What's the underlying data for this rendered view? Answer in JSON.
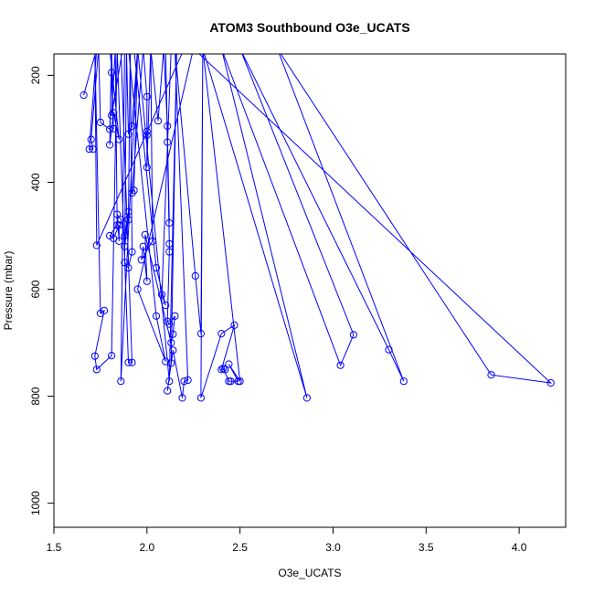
{
  "chart_data": {
    "type": "line",
    "title": "ATOM3 Southbound O3e_UCATS",
    "xlabel": "O3e_UCATS",
    "ylabel": "Pressure (mbar)",
    "xlim": [
      1.5,
      4.25
    ],
    "ylim": [
      1045,
      160
    ],
    "y_reversed": true,
    "x_ticks": [
      "1.5",
      "2.0",
      "2.5",
      "3.0",
      "3.5",
      "4.0"
    ],
    "y_ticks": [
      "200",
      "400",
      "600",
      "800",
      "1000"
    ],
    "grid": false,
    "colors": {
      "series": "#0000ff",
      "axes": "#000000"
    },
    "series": [
      {
        "style": "line+open-circle",
        "points": [
          [
            1.66,
            237
          ],
          [
            1.73,
            150
          ],
          [
            1.69,
            338
          ],
          [
            1.71,
            338
          ],
          [
            1.7,
            320
          ],
          [
            1.74,
            150
          ],
          [
            1.75,
            288
          ],
          [
            1.8,
            301
          ],
          [
            1.81,
            195
          ],
          [
            1.82,
            300
          ],
          [
            1.81,
            150
          ],
          [
            1.8,
            330
          ],
          [
            1.82,
            270
          ],
          [
            1.85,
            320
          ],
          [
            1.8,
            150
          ],
          [
            1.87,
            150
          ],
          [
            1.81,
            275
          ],
          [
            1.83,
            150
          ],
          [
            1.84,
            480
          ],
          [
            1.8,
            500
          ],
          [
            1.82,
            505
          ],
          [
            1.85,
            480
          ],
          [
            1.85,
            510
          ],
          [
            1.84,
            460
          ],
          [
            1.86,
            470
          ],
          [
            1.88,
            500
          ],
          [
            1.9,
            455
          ],
          [
            1.88,
            520
          ],
          [
            1.9,
            470
          ],
          [
            1.91,
            150
          ],
          [
            1.92,
            530
          ],
          [
            1.9,
            560
          ],
          [
            1.88,
            550
          ],
          [
            1.89,
            150
          ],
          [
            1.9,
            310
          ],
          [
            1.92,
            295
          ],
          [
            1.95,
            150
          ],
          [
            1.93,
            415
          ],
          [
            1.92,
            420
          ],
          [
            1.98,
            150
          ],
          [
            2.0,
            240
          ],
          [
            2.0,
            305
          ],
          [
            2.0,
            312
          ],
          [
            2.0,
            372
          ],
          [
            2.02,
            150
          ],
          [
            2.06,
            285
          ],
          [
            2.09,
            150
          ],
          [
            2.11,
            295
          ],
          [
            2.11,
            325
          ],
          [
            2.12,
            476
          ],
          [
            2.1,
            150
          ],
          [
            2.12,
            515
          ],
          [
            2.12,
            530
          ],
          [
            2.11,
            660
          ],
          [
            2.12,
            665
          ],
          [
            2.15,
            650
          ],
          [
            2.14,
            684
          ],
          [
            2.13,
            700
          ],
          [
            1.99,
            498
          ],
          [
            2.0,
            585
          ],
          [
            1.98,
            520
          ],
          [
            1.97,
            545
          ],
          [
            2.03,
            510
          ],
          [
            2.02,
            150
          ],
          [
            2.06,
            150
          ],
          [
            2.14,
            150
          ],
          [
            1.93,
            150
          ],
          [
            2.05,
            560
          ],
          [
            2.1,
            630
          ],
          [
            2.08,
            610
          ],
          [
            2.13,
            150
          ],
          [
            2.2,
            150
          ],
          [
            1.73,
            518
          ],
          [
            1.72,
            150
          ],
          [
            1.75,
            645
          ],
          [
            1.77,
            640
          ],
          [
            1.72,
            725
          ],
          [
            1.73,
            750
          ],
          [
            1.81,
            724
          ],
          [
            1.84,
            150
          ],
          [
            1.9,
            737
          ],
          [
            1.92,
            737
          ],
          [
            1.86,
            150
          ],
          [
            1.88,
            150
          ],
          [
            1.86,
            772
          ],
          [
            1.95,
            150
          ],
          [
            2.12,
            772
          ],
          [
            2.16,
            150
          ],
          [
            2.13,
            738
          ],
          [
            2.11,
            790
          ],
          [
            2.14,
            714
          ],
          [
            2.19,
            803
          ],
          [
            2.2,
            772
          ],
          [
            2.22,
            770
          ],
          [
            2.15,
            150
          ],
          [
            2.26,
            575
          ],
          [
            2.29,
            683
          ],
          [
            2.3,
            150
          ],
          [
            2.29,
            803
          ],
          [
            2.4,
            683
          ],
          [
            2.47,
            667
          ],
          [
            2.4,
            750
          ],
          [
            2.42,
            750
          ],
          [
            2.41,
            748
          ],
          [
            2.44,
            772
          ],
          [
            2.45,
            772
          ],
          [
            2.49,
            772
          ],
          [
            2.44,
            740
          ],
          [
            2.5,
            772
          ],
          [
            2.3,
            150
          ],
          [
            2.86,
            803
          ],
          [
            2.4,
            150
          ],
          [
            3.04,
            742
          ],
          [
            3.11,
            685
          ],
          [
            2.5,
            150
          ],
          [
            3.3,
            713
          ],
          [
            3.38,
            772
          ],
          [
            2.7,
            150
          ],
          [
            3.85,
            760
          ],
          [
            4.17,
            775
          ],
          [
            2.25,
            150
          ],
          [
            1.95,
            600
          ],
          [
            2.1,
            735
          ],
          [
            2.05,
            650
          ],
          [
            1.9,
            150
          ]
        ]
      }
    ]
  }
}
